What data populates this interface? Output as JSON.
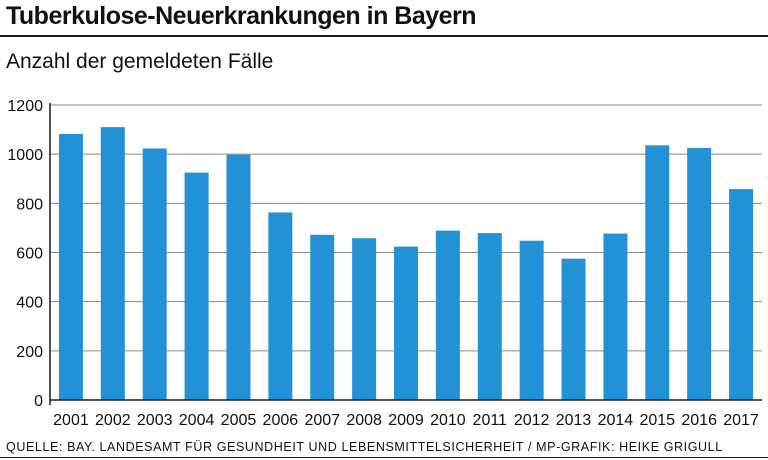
{
  "title": "Tuberkulose-Neuerkrankungen in Bayern",
  "subtitle": "Anzahl der gemeldeten Fälle",
  "source": "QUELLE: BAY. LANDESAMT FÜR GESUNDHEIT UND LEBENSMITTELSICHERHEIT / MP-GRAFIK: HEIKE GRIGULL",
  "colors": {
    "bar": "#2391d6",
    "grid": "#8a8a8a",
    "axis": "#1a1a1a"
  },
  "chart_data": {
    "type": "bar",
    "title": "Tuberkulose-Neuerkrankungen in Bayern",
    "ylabel": "Anzahl der gemeldeten Fälle",
    "xlabel": "",
    "categories": [
      "2001",
      "2002",
      "2003",
      "2004",
      "2005",
      "2006",
      "2007",
      "2008",
      "2009",
      "2010",
      "2011",
      "2012",
      "2013",
      "2014",
      "2015",
      "2016",
      "2017"
    ],
    "values": [
      1082,
      1110,
      1023,
      925,
      998,
      763,
      672,
      658,
      624,
      689,
      679,
      648,
      575,
      677,
      1036,
      1025,
      858
    ],
    "yticks": [
      "0",
      "200",
      "400",
      "600",
      "800",
      "1000",
      "1200"
    ],
    "ylim": [
      0,
      1200
    ],
    "grid": true
  }
}
